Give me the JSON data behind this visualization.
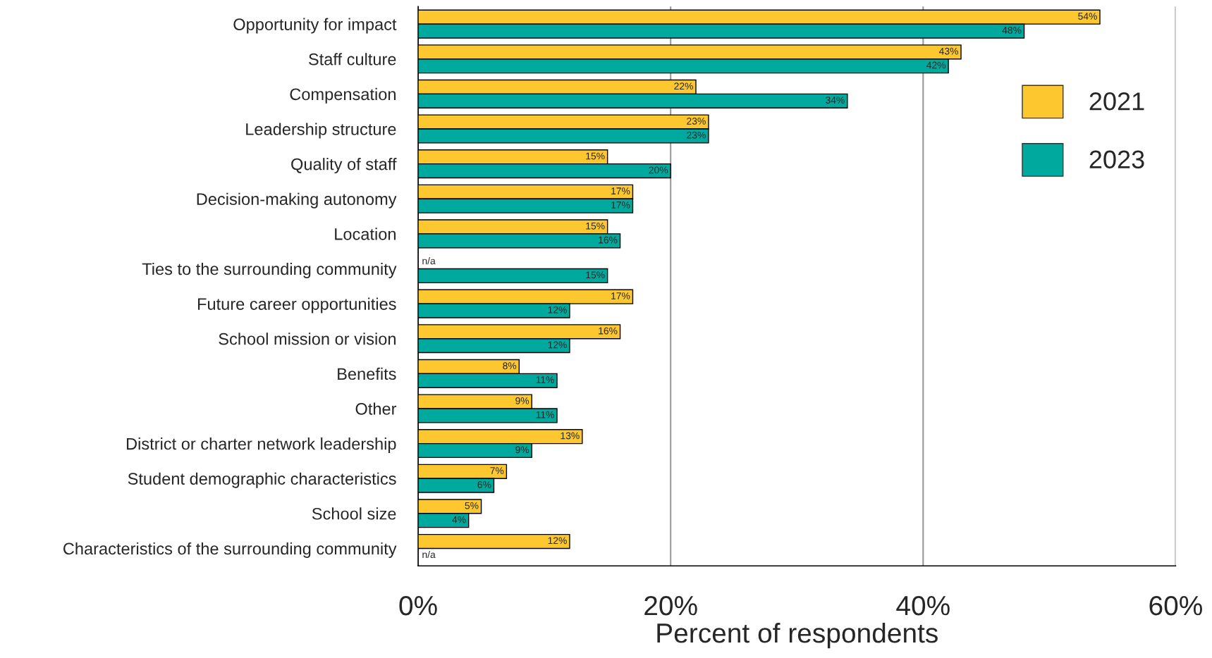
{
  "chart_data": {
    "type": "bar",
    "orientation": "horizontal",
    "categories": [
      "Opportunity for impact",
      "Staff culture",
      "Compensation",
      "Leadership structure",
      "Quality of staff",
      "Decision-making autonomy",
      "Location",
      "Ties to the surrounding community",
      "Future career opportunities",
      "School mission or vision",
      "Benefits",
      "Other",
      "District or charter network leadership",
      "Student demographic characteristics",
      "School size",
      "Characteristics of the surrounding community"
    ],
    "series": [
      {
        "name": "2021",
        "color": "#fdc82f",
        "values": [
          54,
          43,
          22,
          23,
          15,
          17,
          15,
          null,
          17,
          16,
          8,
          9,
          13,
          7,
          5,
          12
        ],
        "value_labels": [
          "54%",
          "43%",
          "22%",
          "23%",
          "15%",
          "17%",
          "15%",
          "n/a",
          "17%",
          "16%",
          "8%",
          "9%",
          "13%",
          "7%",
          "5%",
          "12%"
        ]
      },
      {
        "name": "2023",
        "color": "#00a99d",
        "values": [
          48,
          42,
          34,
          23,
          20,
          17,
          16,
          15,
          12,
          12,
          11,
          11,
          9,
          6,
          4,
          null
        ],
        "value_labels": [
          "48%",
          "42%",
          "34%",
          "23%",
          "20%",
          "17%",
          "16%",
          "15%",
          "12%",
          "12%",
          "11%",
          "11%",
          "9%",
          "6%",
          "4%",
          "n/a"
        ]
      }
    ],
    "xlim": [
      0,
      60
    ],
    "xticks": [
      {
        "value": 0,
        "label": "0%"
      },
      {
        "value": 20,
        "label": "20%"
      },
      {
        "value": 40,
        "label": "40%"
      },
      {
        "value": 60,
        "label": "60%"
      }
    ],
    "xlabel": "Percent of respondents",
    "grid": "x",
    "legend": "top right"
  }
}
